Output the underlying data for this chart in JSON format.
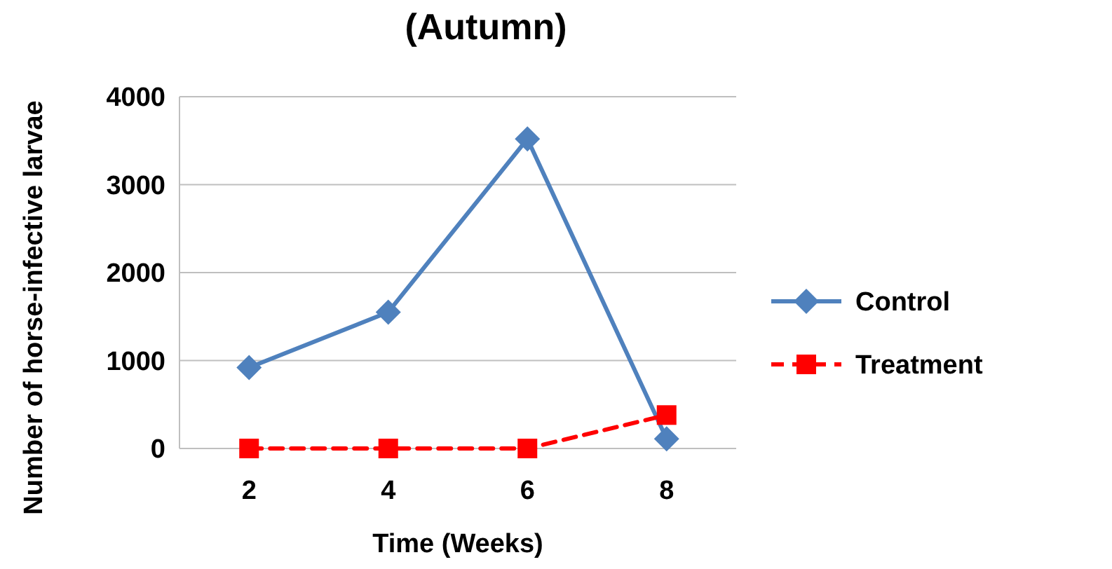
{
  "chart_data": {
    "type": "line",
    "title": "(Autumn)",
    "xlabel": "Time (Weeks)",
    "ylabel": "Number of horse-infective larvae",
    "categories": [
      "2",
      "4",
      "6",
      "8"
    ],
    "series": [
      {
        "name": "Control",
        "color": "#4f81bd",
        "values": [
          920,
          1550,
          3520,
          110
        ],
        "marker": "diamond",
        "line_style": "solid"
      },
      {
        "name": "Treatment",
        "color": "#ff0000",
        "values": [
          0,
          0,
          0,
          380
        ],
        "marker": "square",
        "line_style": "dashed"
      }
    ],
    "ylim": [
      0,
      4000
    ],
    "yticks": [
      0,
      1000,
      2000,
      3000,
      4000
    ],
    "grid": "y",
    "legend": "right"
  }
}
